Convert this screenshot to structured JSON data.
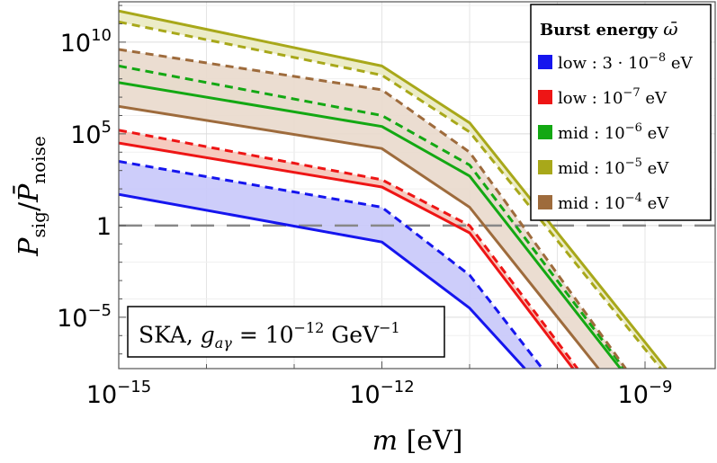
{
  "chart_data": {
    "type": "line",
    "x_scale": "log10",
    "y_scale": "log10",
    "xlim_log10": [
      -15,
      -8.2
    ],
    "ylim_log10": [
      -7.8,
      12.2
    ],
    "x_ticks": [
      {
        "log": -15,
        "base": "10",
        "exp": "−15"
      },
      {
        "log": -12,
        "base": "10",
        "exp": "−12"
      },
      {
        "log": -9,
        "base": "10",
        "exp": "−9"
      }
    ],
    "y_ticks": [
      {
        "log": 10,
        "base": "10",
        "exp": "10"
      },
      {
        "log": 5,
        "base": "10",
        "exp": "5"
      },
      {
        "log": 0,
        "base": "1",
        "exp": ""
      },
      {
        "log": -5,
        "base": "10",
        "exp": "−5"
      }
    ],
    "xlabel": {
      "main": "m",
      "unit": "[eV]"
    },
    "ylabel": {
      "num": "P",
      "num_sub": "sig",
      "den": "P̄",
      "den_sub": "noise"
    },
    "threshold_y_log10": 0,
    "annotation": {
      "text": "SKA, ",
      "symbol": "g",
      "sub": "aγ",
      "eq": " = 10",
      "exp": "−12",
      "unit": " GeV",
      "unit_exp": "−1"
    },
    "legend": {
      "title": "Burst energy ",
      "title_symbol": "ω̄",
      "position": "top-right",
      "entries": [
        {
          "label": "low : 3 · 10",
          "exp": "−8",
          "unit": " eV",
          "color": "#1515ee"
        },
        {
          "label": "low : 10",
          "exp": "−7",
          "unit": " eV",
          "color": "#ee1515"
        },
        {
          "label": "mid : 10",
          "exp": "−6",
          "unit": " eV",
          "color": "#13a813"
        },
        {
          "label": "mid : 10",
          "exp": "−5",
          "unit": " eV",
          "color": "#a8a81a"
        },
        {
          "label": "mid : 10",
          "exp": "−4",
          "unit": " eV",
          "color": "#9e6b3c"
        }
      ]
    },
    "series": [
      {
        "name": "low : 3·10^-8 eV",
        "color": "#1515ee",
        "fill": "#c8c8fa",
        "solid": [
          [
            -15,
            1.7
          ],
          [
            -12,
            -0.9
          ],
          [
            -11,
            -4.5
          ],
          [
            -10.37,
            -7.8
          ]
        ],
        "dashed": [
          [
            -15,
            3.5
          ],
          [
            -12,
            1.0
          ],
          [
            -11,
            -2.7
          ],
          [
            -10.17,
            -7.8
          ]
        ]
      },
      {
        "name": "low : 10^-7 eV",
        "color": "#ee1515",
        "fill": "#f5c4b8",
        "solid": [
          [
            -15,
            4.5
          ],
          [
            -12,
            2.1
          ],
          [
            -11,
            -0.4
          ],
          [
            -9.82,
            -7.8
          ]
        ],
        "dashed": [
          [
            -15,
            5.2
          ],
          [
            -12,
            2.5
          ],
          [
            -11,
            0.0
          ],
          [
            -9.77,
            -7.8
          ]
        ]
      },
      {
        "name": "mid : 10^-6 eV",
        "color": "#13a813",
        "fill": "#d4e8c8",
        "solid": [
          [
            -15,
            7.8
          ],
          [
            -12,
            5.4
          ],
          [
            -11,
            2.7
          ],
          [
            -9.28,
            -7.8
          ]
        ],
        "dashed": [
          [
            -15,
            8.7
          ],
          [
            -12,
            6.0
          ],
          [
            -11,
            3.3
          ],
          [
            -9.24,
            -7.8
          ]
        ]
      },
      {
        "name": "mid : 10^-5 eV",
        "color": "#a8a81a",
        "fill": "#eaeac2",
        "solid": [
          [
            -15,
            11.7
          ],
          [
            -12,
            8.7
          ],
          [
            -11,
            5.6
          ],
          [
            -8.76,
            -7.8
          ]
        ],
        "dashed": [
          [
            -15,
            11.1
          ],
          [
            -12,
            8.2
          ],
          [
            -11,
            5.1
          ],
          [
            -8.82,
            -7.8
          ]
        ]
      },
      {
        "name": "mid : 10^-4 eV",
        "color": "#9e6b3c",
        "fill": "#e9d9cc",
        "solid": [
          [
            -15,
            6.5
          ],
          [
            -12,
            4.2
          ],
          [
            -11,
            1.0
          ],
          [
            -9.53,
            -7.8
          ]
        ],
        "dashed": [
          [
            -15,
            9.6
          ],
          [
            -12,
            7.4
          ],
          [
            -11,
            4.0
          ],
          [
            -9.22,
            -7.8
          ]
        ]
      }
    ]
  }
}
